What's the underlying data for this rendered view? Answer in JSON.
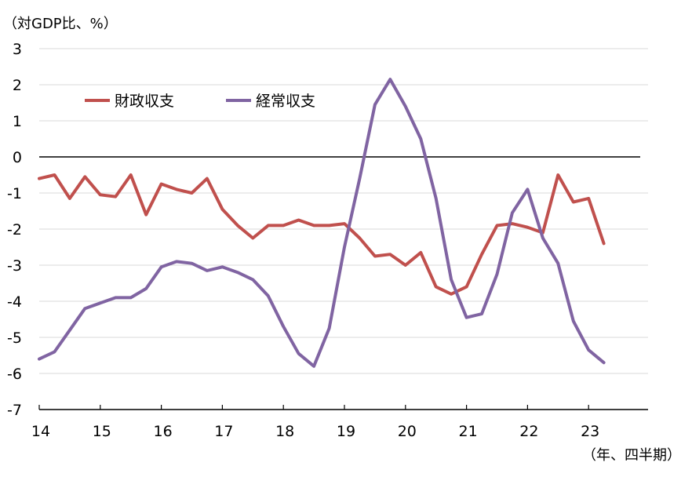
{
  "chart_data": {
    "type": "line",
    "y_unit_label": "（対GDP比、%）",
    "x_unit_label": "（年、四半期）",
    "ylim": [
      -7,
      3
    ],
    "y_ticks": [
      3,
      2,
      1,
      0,
      -1,
      -2,
      -3,
      -4,
      -5,
      -6,
      -7
    ],
    "x_tick_labels": [
      "14",
      "15",
      "16",
      "17",
      "18",
      "19",
      "20",
      "21",
      "22",
      "23"
    ],
    "x_quarters": [
      0,
      0.25,
      0.5,
      0.75,
      1,
      1.25,
      1.5,
      1.75,
      2,
      2.25,
      2.5,
      2.75,
      3,
      3.25,
      3.5,
      3.75,
      4,
      4.25,
      4.5,
      4.75,
      5,
      5.25,
      5.5,
      5.75,
      6,
      6.25,
      6.5,
      6.75,
      7,
      7.25,
      7.5,
      7.75,
      8,
      8.25,
      8.5,
      8.75,
      9,
      9.25
    ],
    "grid": true,
    "legend_position": "top-left",
    "series": [
      {
        "name": "財政収支",
        "color": "#c0504d",
        "values": [
          -0.6,
          -0.5,
          -1.15,
          -0.55,
          -1.05,
          -1.1,
          -0.5,
          -1.6,
          -0.75,
          -0.9,
          -1.0,
          -0.6,
          -1.45,
          -1.9,
          -2.25,
          -1.9,
          -1.9,
          -1.75,
          -1.9,
          -1.9,
          -1.85,
          -2.25,
          -2.75,
          -2.7,
          -3.0,
          -2.65,
          -3.6,
          -3.8,
          -3.6,
          -2.7,
          -1.9,
          -1.85,
          -1.95,
          -2.1,
          -0.5,
          -1.25,
          -1.15,
          -2.4
        ]
      },
      {
        "name": "経常収支",
        "color": "#8064a2",
        "values": [
          -5.6,
          -5.4,
          -4.8,
          -4.2,
          -4.05,
          -3.9,
          -3.9,
          -3.65,
          -3.05,
          -2.9,
          -2.95,
          -3.15,
          -3.05,
          -3.2,
          -3.4,
          -3.85,
          -4.7,
          -5.45,
          -5.8,
          -4.75,
          -2.5,
          -0.6,
          1.45,
          2.15,
          1.4,
          0.5,
          -1.15,
          -3.4,
          -4.45,
          -4.35,
          -3.25,
          -1.55,
          -0.9,
          -2.25,
          -2.95,
          -4.55,
          -5.35,
          -5.7
        ]
      }
    ]
  }
}
